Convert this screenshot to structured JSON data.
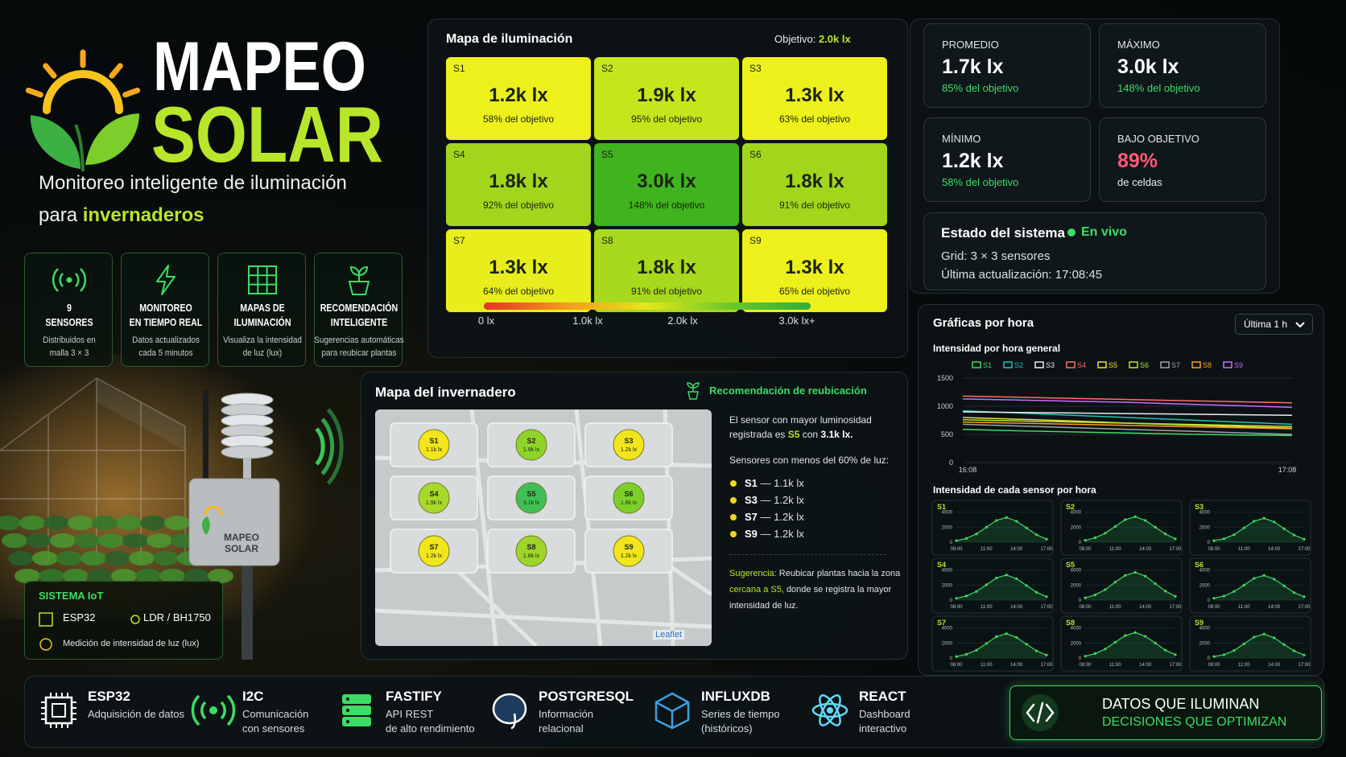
{
  "brand": {
    "title_line1": "MAPEO",
    "title_line2": "SOLAR",
    "subtitle_line1": "Monitoreo inteligente de iluminación",
    "subtitle_line2": "para",
    "subtitle_highlight": "invernaderos"
  },
  "features": [
    {
      "title": [
        "9",
        "SENSORES"
      ],
      "description": [
        "Distribuidos en",
        "malla 3 × 3"
      ]
    },
    {
      "title": [
        "MONITOREO",
        "EN TIEMPO REAL"
      ],
      "description": [
        "Datos actualizados",
        "cada 5 minutos"
      ]
    },
    {
      "title": [
        "MAPAS DE",
        "ILUMINACIÓN"
      ],
      "description": [
        "Visualiza la intensidad",
        "de luz (lux)"
      ]
    },
    {
      "title": [
        "RECOMENDACIÓN",
        "INTELIGENTE"
      ],
      "description": [
        "Sugerencias automáticas",
        "para reubicar plantas"
      ]
    }
  ],
  "device_label": [
    "MAPEO",
    "SOLAR"
  ],
  "iot": {
    "title": "SISTEMA IoT",
    "items": [
      "ESP32",
      "LDR / BH1750",
      "Medición de intensidad de luz (lux)"
    ]
  },
  "heatmap": {
    "title": "Mapa de iluminación",
    "target_label": "Objetivo:",
    "target": "2.0k lx",
    "cells": [
      {
        "id": "S1",
        "value": "1.2k lx",
        "pct": "58% del objetivo",
        "color": "#eef01c"
      },
      {
        "id": "S2",
        "value": "1.9k lx",
        "pct": "95% del objetivo",
        "color": "#c6e61c"
      },
      {
        "id": "S3",
        "value": "1.3k lx",
        "pct": "63% del objetivo",
        "color": "#eef01c"
      },
      {
        "id": "S4",
        "value": "1.8k lx",
        "pct": "92% del objetivo",
        "color": "#a2d61c"
      },
      {
        "id": "S5",
        "value": "3.0k lx",
        "pct": "148% del objetivo",
        "color": "#3fb41e"
      },
      {
        "id": "S6",
        "value": "1.8k lx",
        "pct": "91% del objetivo",
        "color": "#a2d61c"
      },
      {
        "id": "S7",
        "value": "1.3k lx",
        "pct": "64% del objetivo",
        "color": "#e8ee1c"
      },
      {
        "id": "S8",
        "value": "1.8k lx",
        "pct": "91% del objetivo",
        "color": "#a8d91c"
      },
      {
        "id": "S9",
        "value": "1.3k lx",
        "pct": "65% del objetivo",
        "color": "#eef01c"
      }
    ],
    "scale_labels": [
      "0 lx",
      "1.0k lx",
      "2.0k lx",
      "3.0k lx+"
    ]
  },
  "stats": [
    {
      "label": "PROMEDIO",
      "value": "1.7k lx",
      "note": "85% del objetivo",
      "value_color": "#ffffff",
      "note_color": "#3ddc64"
    },
    {
      "label": "MÁXIMO",
      "value": "3.0k lx",
      "note": "148% del objetivo",
      "value_color": "#ffffff",
      "note_color": "#3ddc64"
    },
    {
      "label": "MÍNIMO",
      "value": "1.2k lx",
      "note": "58% del objetivo",
      "value_color": "#ffffff",
      "note_color": "#3ddc64"
    },
    {
      "label": "BAJO OBJETIVO",
      "value": "89%",
      "note": "de celdas",
      "value_color": "#ff5a78",
      "note_color": "#e8eef0"
    }
  ],
  "status": {
    "title": "Estado del sistema",
    "live": "En vivo",
    "grid": "Grid: 3 × 3 sensores",
    "updated": "Última actualización: 17:08:45"
  },
  "greenhouse": {
    "title": "Mapa del invernadero",
    "attribution": "Leaflet",
    "sensors": [
      {
        "id": "S1",
        "value": "1.1k lx",
        "color": "#f2e51c"
      },
      {
        "id": "S2",
        "value": "1.9k lx",
        "color": "#8fd42a"
      },
      {
        "id": "S3",
        "value": "1.2k lx",
        "color": "#f2e51c"
      },
      {
        "id": "S4",
        "value": "1.9k lx",
        "color": "#a8d82a"
      },
      {
        "id": "S5",
        "value": "3.1k lx",
        "color": "#3fbf55"
      },
      {
        "id": "S6",
        "value": "1.8k lx",
        "color": "#7ccf2a"
      },
      {
        "id": "S7",
        "value": "1.2k lx",
        "color": "#f2e51c"
      },
      {
        "id": "S8",
        "value": "1.8k lx",
        "color": "#9fd52a"
      },
      {
        "id": "S9",
        "value": "1.2k lx",
        "color": "#f2e51c"
      }
    ]
  },
  "recommendation": {
    "title": "Recomendación de reubicación",
    "text_line1": "El sensor con mayor luminosidad",
    "text_line2": "registrada es",
    "highlight_sensor": "S5",
    "text_connector": "con",
    "highlight_value": "3.1k lx.",
    "low_title": "Sensores con menos del 60% de luz:",
    "low": [
      {
        "id": "S1",
        "value": "— 1.1k lx"
      },
      {
        "id": "S3",
        "value": "— 1.2k lx"
      },
      {
        "id": "S7",
        "value": "— 1.2k lx"
      },
      {
        "id": "S9",
        "value": "— 1.2k lx"
      }
    ],
    "suggestion": {
      "label": "Sugerencia:",
      "line1": "Reubicar plantas hacia la zona",
      "highlight": "cercana a S5,",
      "line2": "donde se registra la mayor",
      "line3": "intensidad de luz."
    }
  },
  "hourly": {
    "title": "Gráficas por hora",
    "range": "Última 1 h",
    "overall": {
      "type": "line",
      "title": "Intensidad por hora general",
      "x": [
        "16:08",
        null,
        null,
        null,
        null,
        null,
        "17:08"
      ],
      "ylim": [
        0,
        1500
      ],
      "yticks": [
        0,
        500,
        1000,
        1500
      ],
      "series": [
        {
          "name": "S1",
          "color": "#3ddc64",
          "values": [
            590,
            565,
            545,
            525,
            505,
            490,
            480
          ]
        },
        {
          "name": "S2",
          "color": "#22c3b4",
          "values": [
            920,
            880,
            840,
            800,
            760,
            720,
            680
          ]
        },
        {
          "name": "S3",
          "color": "#e8eef0",
          "values": [
            900,
            890,
            880,
            870,
            860,
            850,
            840
          ]
        },
        {
          "name": "S4",
          "color": "#ff6f6f",
          "values": [
            1180,
            1160,
            1140,
            1120,
            1100,
            1080,
            1060
          ]
        },
        {
          "name": "S5",
          "color": "#e8e23a",
          "values": [
            800,
            770,
            740,
            700,
            670,
            640,
            610
          ]
        },
        {
          "name": "S6",
          "color": "#b8e33a",
          "values": [
            760,
            740,
            720,
            700,
            680,
            660,
            640
          ]
        },
        {
          "name": "S7",
          "color": "#9aa4a8",
          "values": [
            680,
            650,
            620,
            590,
            560,
            530,
            500
          ]
        },
        {
          "name": "S8",
          "color": "#ff9a2e",
          "values": [
            720,
            700,
            680,
            660,
            640,
            620,
            600
          ]
        },
        {
          "name": "S9",
          "color": "#c86bff",
          "values": [
            1130,
            1110,
            1090,
            1070,
            1040,
            1010,
            980
          ]
        }
      ]
    },
    "per_sensor": {
      "type": "line",
      "title": "Intensidad de cada sensor por hora",
      "color": "#3ddc64",
      "x": [
        "08:00",
        null,
        null,
        "11:00",
        null,
        null,
        "14:00",
        null,
        null,
        "17:00"
      ],
      "ylim": [
        0,
        4500
      ],
      "yticks": [
        0,
        2000,
        4000
      ],
      "series": [
        {
          "name": "S1",
          "values": [
            200,
            500,
            1100,
            2000,
            2900,
            3300,
            2800,
            1900,
            1000,
            400
          ]
        },
        {
          "name": "S2",
          "values": [
            250,
            600,
            1200,
            2100,
            3000,
            3400,
            2900,
            2000,
            1100,
            450
          ]
        },
        {
          "name": "S3",
          "values": [
            200,
            450,
            1000,
            1900,
            2800,
            3200,
            2700,
            1800,
            950,
            400
          ]
        },
        {
          "name": "S4",
          "values": [
            250,
            550,
            1150,
            2050,
            2950,
            3350,
            2850,
            1950,
            1050,
            450
          ]
        },
        {
          "name": "S5",
          "values": [
            300,
            700,
            1400,
            2400,
            3300,
            3700,
            3200,
            2200,
            1200,
            500
          ]
        },
        {
          "name": "S6",
          "values": [
            250,
            550,
            1150,
            2000,
            2900,
            3300,
            2800,
            1900,
            1000,
            450
          ]
        },
        {
          "name": "S7",
          "values": [
            200,
            500,
            1050,
            1950,
            2850,
            3250,
            2750,
            1850,
            950,
            400
          ]
        },
        {
          "name": "S8",
          "values": [
            250,
            600,
            1200,
            2100,
            3000,
            3400,
            2900,
            2000,
            1050,
            450
          ]
        },
        {
          "name": "S9",
          "values": [
            200,
            450,
            1000,
            1900,
            2800,
            3200,
            2700,
            1800,
            950,
            400
          ]
        }
      ]
    }
  },
  "stack": [
    {
      "name": "ESP32",
      "description": [
        "Adquisición de datos"
      ]
    },
    {
      "name": "I2C",
      "description": [
        "Comunicación",
        "con sensores"
      ]
    },
    {
      "name": "FASTIFY",
      "description": [
        "API REST",
        "de alto rendimiento"
      ]
    },
    {
      "name": "POSTGRESQL",
      "description": [
        "Información",
        "relacional"
      ]
    },
    {
      "name": "INFLUXDB",
      "description": [
        "Series de tiempo",
        "(históricos)"
      ]
    },
    {
      "name": "REACT",
      "description": [
        "Dashboard",
        "interactivo"
      ]
    }
  ],
  "banner": {
    "line1": "DATOS QUE ILUMINAN",
    "line2": "DECISIONES QUE OPTIMIZAN"
  }
}
